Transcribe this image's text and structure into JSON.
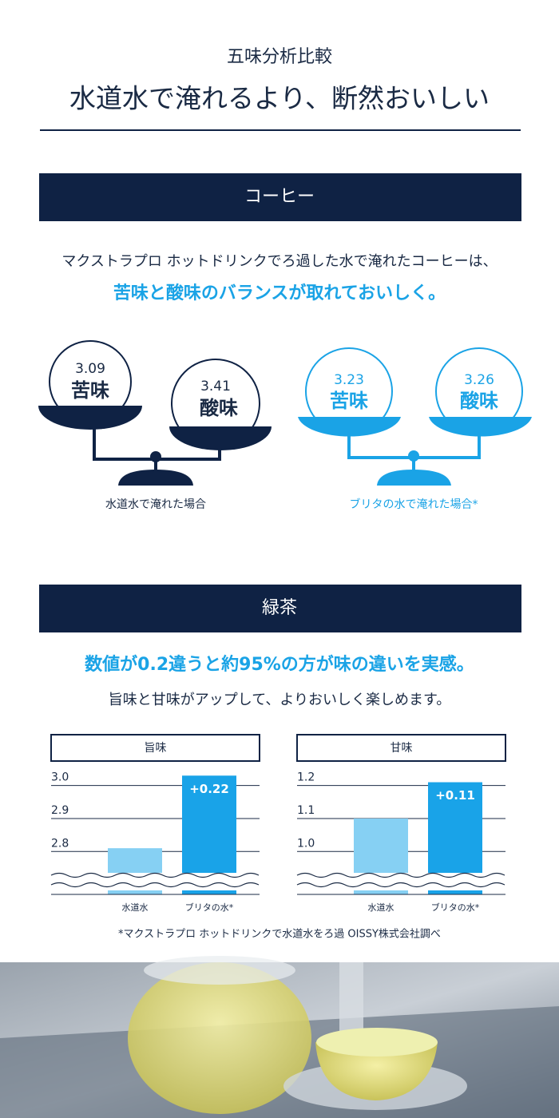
{
  "header": {
    "subtitle": "五味分析比較",
    "title": "水道水で淹れるより、断然おいしい"
  },
  "coffee": {
    "heading": "コーヒー",
    "text": "マクストラプロ ホットドリンクでろ過した水で淹れたコーヒーは、",
    "highlight": "苦味と酸味のバランスが取れておいしく。",
    "scales": [
      {
        "caption": "水道水で淹れた場合",
        "items": [
          {
            "value": 3.09,
            "label": "苦味"
          },
          {
            "value": 3.41,
            "label": "酸味"
          }
        ]
      },
      {
        "caption": "ブリタの水で淹れた場合*",
        "items": [
          {
            "value": 3.23,
            "label": "苦味"
          },
          {
            "value": 3.26,
            "label": "酸味"
          }
        ]
      }
    ]
  },
  "green_tea": {
    "heading": "緑茶",
    "highlight": "数値が0.2違うと約95%の方が味の違いを実感。",
    "text": "旨味と甘味がアップして、よりおいしく楽しめます。"
  },
  "chart_data": [
    {
      "type": "bar",
      "title": "旨味",
      "categories": [
        "水道水",
        "ブリタの水*"
      ],
      "values": [
        2.81,
        3.03
      ],
      "colors": [
        "#86d0f3",
        "#19a3e8"
      ],
      "annotation": "+0.22",
      "ylim": [
        2.67,
        3.05
      ],
      "yticks": [
        2.8,
        2.9,
        {
          "value": 3,
          "label": "3.0"
        }
      ]
    },
    {
      "type": "bar",
      "title": "甘味",
      "categories": [
        "水道水",
        "ブリタの水*"
      ],
      "values": [
        1.1,
        1.21
      ],
      "colors": [
        "#86d0f3",
        "#19a3e8"
      ],
      "annotation": "+0.11",
      "ylim": [
        0.87,
        1.25
      ],
      "yticks": [
        {
          "value": 1,
          "label": "1.0"
        },
        1.1,
        1.2
      ]
    }
  ],
  "footnote": "*マクストラプロ ホットドリンクで水道水をろ過 OISSY株式会社調べ"
}
